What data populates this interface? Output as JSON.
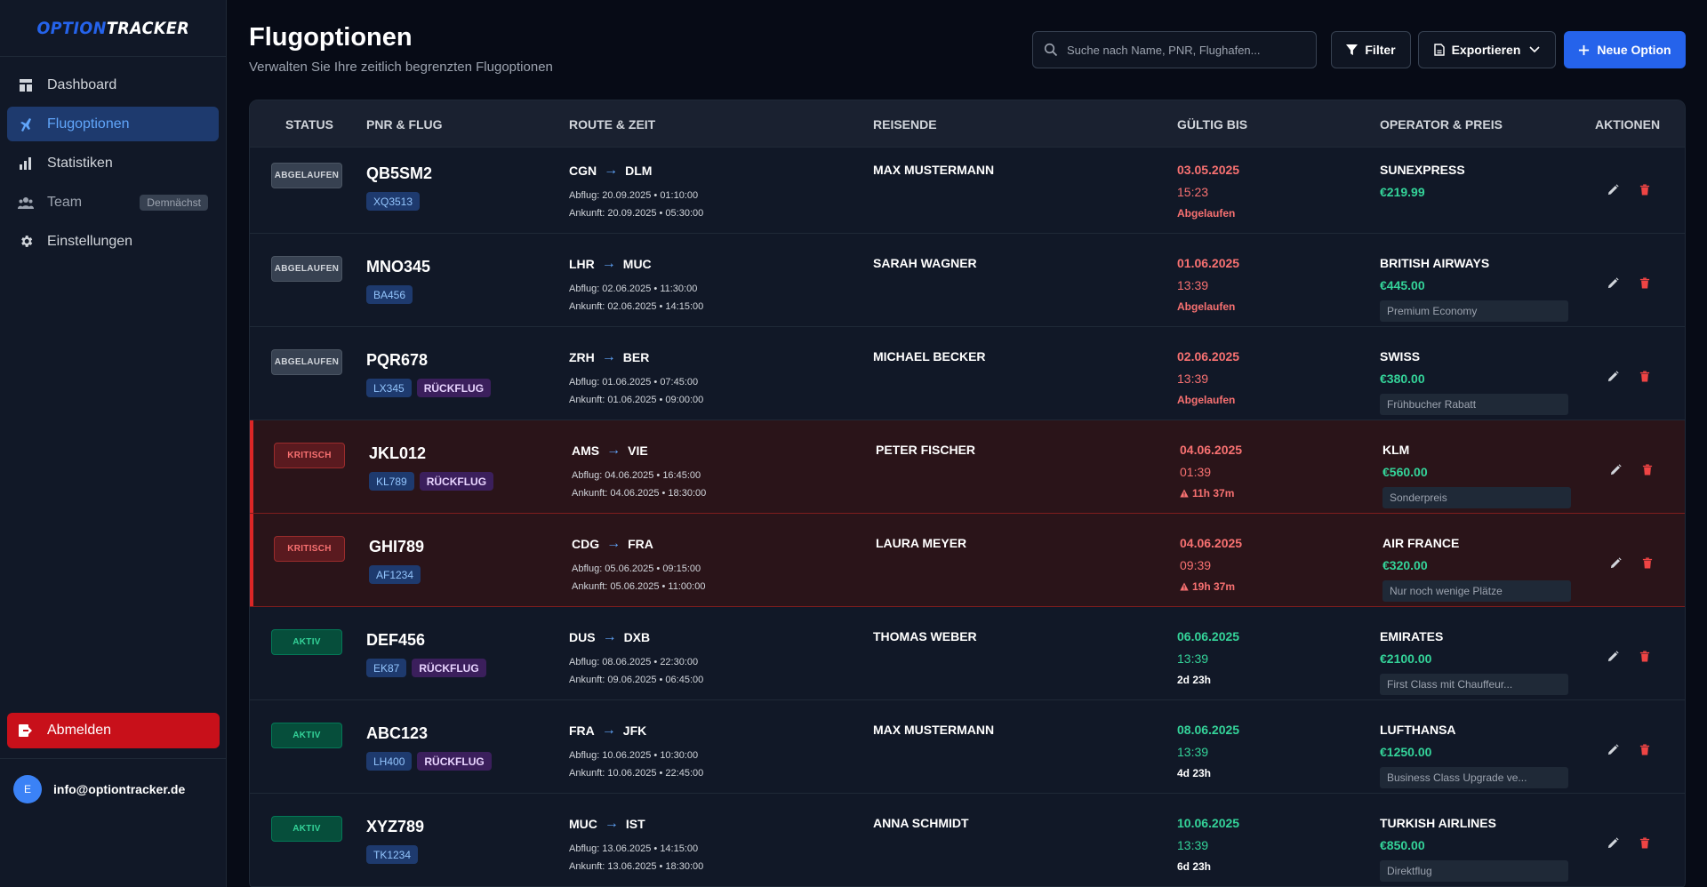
{
  "app": {
    "logo_part1": "OPTION",
    "logo_part2": "TRACKER"
  },
  "sidebar": {
    "items": [
      {
        "label": "Dashboard"
      },
      {
        "label": "Flugoptionen"
      },
      {
        "label": "Statistiken"
      },
      {
        "label": "Team",
        "badge": "Demnächst"
      },
      {
        "label": "Einstellungen"
      }
    ],
    "logout_label": "Abmelden",
    "user": {
      "initial": "E",
      "email": "info@optiontracker.de"
    }
  },
  "header": {
    "title": "Flugoptionen",
    "subtitle": "Verwalten Sie Ihre zeitlich begrenzten Flugoptionen",
    "search_placeholder": "Suche nach Name, PNR, Flughafen...",
    "filter_label": "Filter",
    "export_label": "Exportieren",
    "new_label": "Neue Option"
  },
  "colors": {
    "accent": "#2563eb",
    "danger": "#dc2626",
    "success": "#34d399",
    "expired": "#f87171"
  },
  "table": {
    "columns": [
      "STATUS",
      "PNR & FLUG",
      "ROUTE & ZEIT",
      "REISENDE",
      "GÜLTIG BIS",
      "OPERATOR & PREIS",
      "AKTIONEN"
    ],
    "rows": [
      {
        "status": "ABGELAUFEN",
        "pnr": "QB5SM2",
        "flight": "XQ3513",
        "return": "",
        "from": "CGN",
        "to": "DLM",
        "dep": "Abflug: 20.09.2025 • 01:10:00",
        "arr": "Ankunft: 20.09.2025 • 05:30:00",
        "traveler": "MAX MUSTERMANN",
        "valid_date": "03.05.2025",
        "valid_time": "15:23",
        "valid_info": "Abgelaufen",
        "operator": "SUNEXPRESS",
        "price": "€219.99",
        "note": ""
      },
      {
        "status": "ABGELAUFEN",
        "pnr": "MNO345",
        "flight": "BA456",
        "return": "",
        "from": "LHR",
        "to": "MUC",
        "dep": "Abflug: 02.06.2025 • 11:30:00",
        "arr": "Ankunft: 02.06.2025 • 14:15:00",
        "traveler": "SARAH WAGNER",
        "valid_date": "01.06.2025",
        "valid_time": "13:39",
        "valid_info": "Abgelaufen",
        "operator": "BRITISH AIRWAYS",
        "price": "€445.00",
        "note": "Premium Economy"
      },
      {
        "status": "ABGELAUFEN",
        "pnr": "PQR678",
        "flight": "LX345",
        "return": "RÜCKFLUG",
        "from": "ZRH",
        "to": "BER",
        "dep": "Abflug: 01.06.2025 • 07:45:00",
        "arr": "Ankunft: 01.06.2025 • 09:00:00",
        "traveler": "MICHAEL BECKER",
        "valid_date": "02.06.2025",
        "valid_time": "13:39",
        "valid_info": "Abgelaufen",
        "operator": "SWISS",
        "price": "€380.00",
        "note": "Frühbucher Rabatt"
      },
      {
        "status": "KRITISCH",
        "pnr": "JKL012",
        "flight": "KL789",
        "return": "RÜCKFLUG",
        "from": "AMS",
        "to": "VIE",
        "dep": "Abflug: 04.06.2025 • 16:45:00",
        "arr": "Ankunft: 04.06.2025 • 18:30:00",
        "traveler": "PETER FISCHER",
        "valid_date": "04.06.2025",
        "valid_time": "01:39",
        "valid_info": "11h 37m",
        "operator": "KLM",
        "price": "€560.00",
        "note": "Sonderpreis"
      },
      {
        "status": "KRITISCH",
        "pnr": "GHI789",
        "flight": "AF1234",
        "return": "",
        "from": "CDG",
        "to": "FRA",
        "dep": "Abflug: 05.06.2025 • 09:15:00",
        "arr": "Ankunft: 05.06.2025 • 11:00:00",
        "traveler": "LAURA MEYER",
        "valid_date": "04.06.2025",
        "valid_time": "09:39",
        "valid_info": "19h 37m",
        "operator": "AIR FRANCE",
        "price": "€320.00",
        "note": "Nur noch wenige Plätze"
      },
      {
        "status": "AKTIV",
        "pnr": "DEF456",
        "flight": "EK87",
        "return": "RÜCKFLUG",
        "from": "DUS",
        "to": "DXB",
        "dep": "Abflug: 08.06.2025 • 22:30:00",
        "arr": "Ankunft: 09.06.2025 • 06:45:00",
        "traveler": "THOMAS WEBER",
        "valid_date": "06.06.2025",
        "valid_time": "13:39",
        "valid_info": "2d 23h",
        "operator": "EMIRATES",
        "price": "€2100.00",
        "note": "First Class mit Chauffeur..."
      },
      {
        "status": "AKTIV",
        "pnr": "ABC123",
        "flight": "LH400",
        "return": "RÜCKFLUG",
        "from": "FRA",
        "to": "JFK",
        "dep": "Abflug: 10.06.2025 • 10:30:00",
        "arr": "Ankunft: 10.06.2025 • 22:45:00",
        "traveler": "MAX MUSTERMANN",
        "valid_date": "08.06.2025",
        "valid_time": "13:39",
        "valid_info": "4d 23h",
        "operator": "LUFTHANSA",
        "price": "€1250.00",
        "note": "Business Class Upgrade ve..."
      },
      {
        "status": "AKTIV",
        "pnr": "XYZ789",
        "flight": "TK1234",
        "return": "",
        "from": "MUC",
        "to": "IST",
        "dep": "Abflug: 13.06.2025 • 14:15:00",
        "arr": "Ankunft: 13.06.2025 • 18:30:00",
        "traveler": "ANNA SCHMIDT",
        "valid_date": "10.06.2025",
        "valid_time": "13:39",
        "valid_info": "6d 23h",
        "operator": "TURKISH AIRLINES",
        "price": "€850.00",
        "note": "Direktflug"
      }
    ]
  }
}
